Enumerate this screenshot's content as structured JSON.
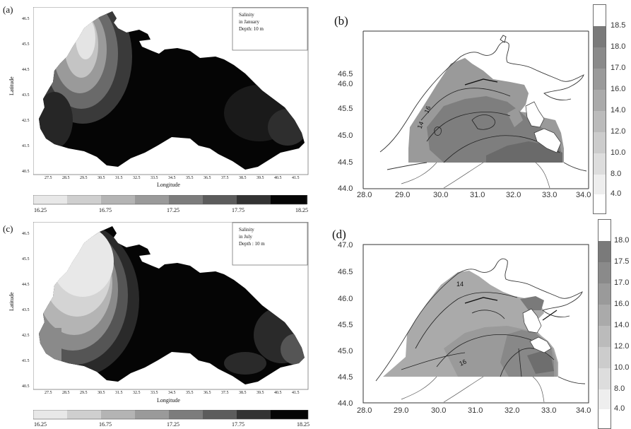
{
  "panels": {
    "a": {
      "label": "(a)",
      "legend": [
        "Salinity",
        "in January",
        "Depth:  10  m"
      ],
      "xlabel": "Longitude",
      "ylabel": "Latitude",
      "xticks": [
        "27.5",
        "28.5",
        "29.5",
        "30.5",
        "31.5",
        "32.5",
        "33.5",
        "34.5",
        "35.5",
        "36.5",
        "37.5",
        "38.5",
        "39.5",
        "40.5",
        "41.5"
      ],
      "yticks": [
        "46.5",
        "45.5",
        "44.5",
        "43.5",
        "42.5",
        "41.5",
        "40.5"
      ],
      "colorbar_labels": [
        "16.25",
        "16.75",
        "17.25",
        "17.75",
        "18.25"
      ]
    },
    "b": {
      "label": "(b)",
      "xticks": [
        "28.0",
        "29.0",
        "30.0",
        "31.0",
        "32.0",
        "33.0",
        "34.0"
      ],
      "yticks": [
        "46.5",
        "46.0",
        "45.5",
        "45.0",
        "44.5",
        "44.0"
      ],
      "colorbar_labels": [
        "18.5",
        "18.0",
        "17.0",
        "16.0",
        "14.0",
        "12.0",
        "10.0",
        "8.0",
        "4.0"
      ],
      "contour_labels": [
        "14",
        "16"
      ]
    },
    "c": {
      "label": "(c)",
      "legend": [
        "Salinity",
        "in July",
        "Depth :  10  m"
      ],
      "xlabel": "Longitude",
      "ylabel": "Latitude",
      "xticks": [
        "27.5",
        "28.5",
        "29.5",
        "30.5",
        "31.5",
        "32.5",
        "33.5",
        "34.5",
        "35.5",
        "36.5",
        "37.5",
        "38.5",
        "39.5",
        "40.5",
        "41.5"
      ],
      "yticks": [
        "46.5",
        "45.5",
        "44.5",
        "43.5",
        "42.5",
        "41.5",
        "40.5"
      ],
      "colorbar_labels": [
        "16.25",
        "16.75",
        "17.25",
        "17.75",
        "18.25"
      ]
    },
    "d": {
      "label": "(d)",
      "xticks": [
        "28.0",
        "29.0",
        "30.0",
        "31.0",
        "32.0",
        "33.0",
        "34.0"
      ],
      "yticks": [
        "47.0",
        "46.5",
        "46.0",
        "45.5",
        "45.0",
        "44.5",
        "44.0"
      ],
      "colorbar_labels": [
        "18.0",
        "17.5",
        "17.0",
        "16.0",
        "14.0",
        "12.0",
        "10.0",
        "8.0",
        "4.0"
      ],
      "contour_labels": [
        "14",
        "16"
      ]
    }
  },
  "colors": {
    "sea_deep": "#050505",
    "low_salinity": "#e6e6e6",
    "shelf_fill": "#9a9a9a"
  }
}
